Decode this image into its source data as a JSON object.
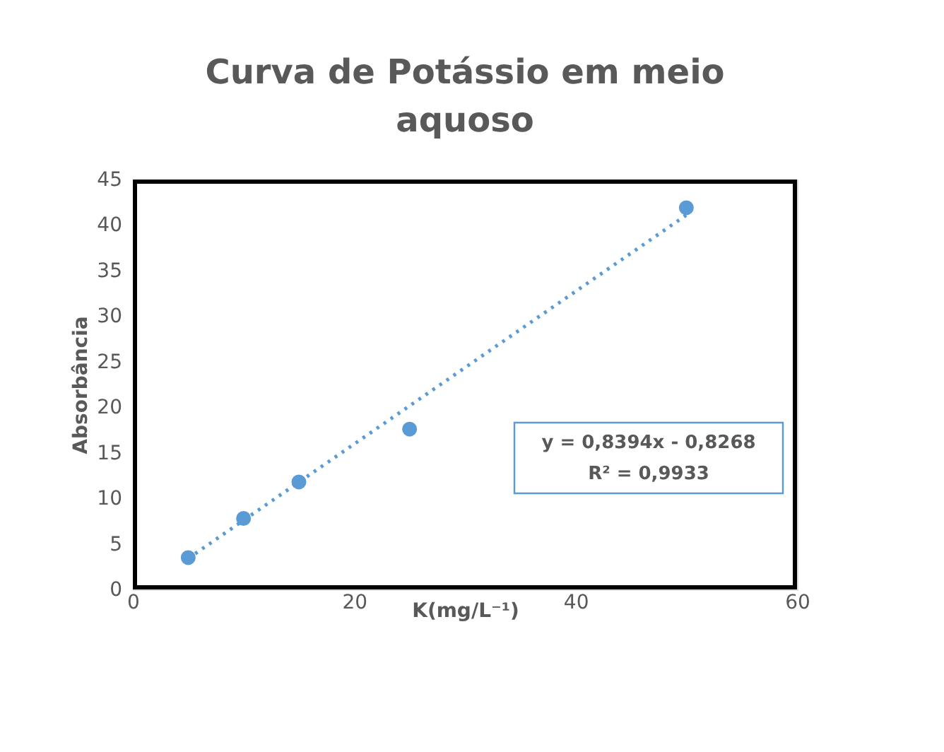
{
  "chart_data": {
    "type": "scatter",
    "title": "Curva de Potássio em meio aquoso",
    "xlabel": "K(mg/L⁻¹)",
    "ylabel": "Absorbância",
    "series": [
      {
        "type": "scatter",
        "color": "#5b9bd5",
        "marker": "circle",
        "x": [
          5,
          10,
          15,
          25,
          50
        ],
        "values": [
          3.5,
          7.8,
          11.8,
          17.6,
          41.9
        ]
      },
      {
        "type": "line",
        "color": "#5b9bd5",
        "line_style": "dotted",
        "x": [
          5,
          50
        ],
        "values": [
          3.4,
          41.1
        ]
      }
    ],
    "annotations": [
      "y = 0,8394x - 0,8268",
      "R² = 0,9933"
    ],
    "xlim": [
      0,
      60
    ],
    "xticks": [
      0,
      20,
      40,
      60
    ],
    "ylim": [
      0,
      45
    ],
    "yticks": [
      0,
      5,
      10,
      15,
      20,
      25,
      30,
      35,
      40,
      45
    ],
    "grid": false,
    "legend": false
  }
}
